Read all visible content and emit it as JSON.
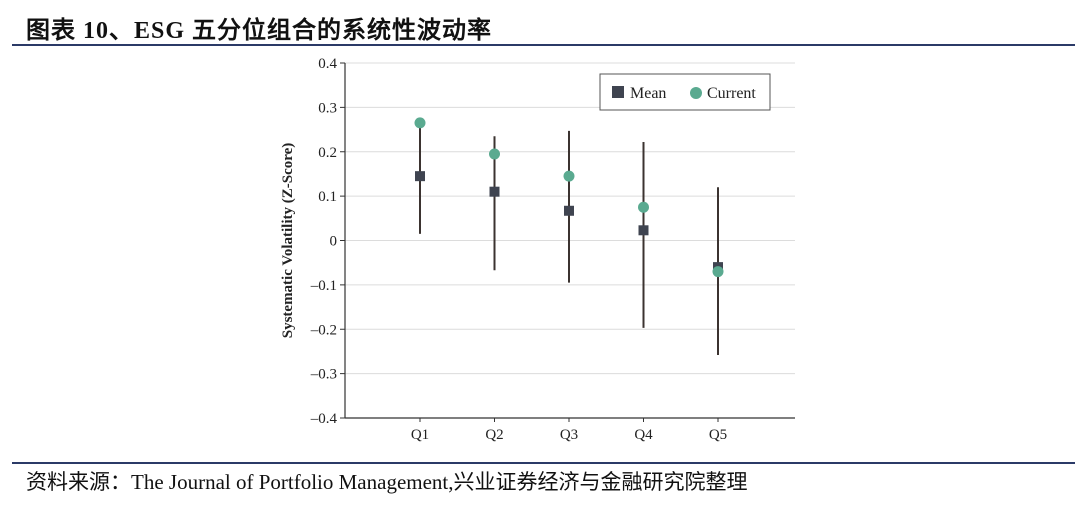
{
  "header": {
    "title": "图表 10、ESG 五分位组合的系统性波动率"
  },
  "footer": {
    "source": "资料来源：The Journal of Portfolio Management,兴业证券经济与金融研究院整理"
  },
  "chart_data": {
    "type": "scatter",
    "categories": [
      "Q1",
      "Q2",
      "Q3",
      "Q4",
      "Q5"
    ],
    "ylabel": "Systematic Volatility (Z-Score)",
    "ylim": [
      -0.4,
      0.4
    ],
    "yticks": [
      0.4,
      0.3,
      0.2,
      0.1,
      0,
      -0.1,
      -0.2,
      -0.3,
      -0.4
    ],
    "ytick_labels": [
      "0.4",
      "0.3",
      "0.2",
      "0.1",
      "0",
      "–0.1",
      "–0.2",
      "–0.3",
      "–0.4"
    ],
    "grid": true,
    "legend_position": "top-right",
    "series": [
      {
        "name": "Mean",
        "marker": "square",
        "color": "#3f4450",
        "values": [
          0.145,
          0.11,
          0.067,
          0.023,
          -0.06
        ],
        "error_low": [
          0.015,
          -0.067,
          -0.095,
          -0.197,
          -0.258
        ],
        "error_high": [
          0.265,
          0.235,
          0.247,
          0.222,
          0.12
        ]
      },
      {
        "name": "Current",
        "marker": "circle",
        "color": "#5aaa90",
        "values": [
          0.265,
          0.195,
          0.145,
          0.075,
          -0.07
        ]
      }
    ],
    "colors": {
      "gridline": "#dcdcdc",
      "axis": "#333333",
      "errorbar": "#3b3330"
    }
  }
}
